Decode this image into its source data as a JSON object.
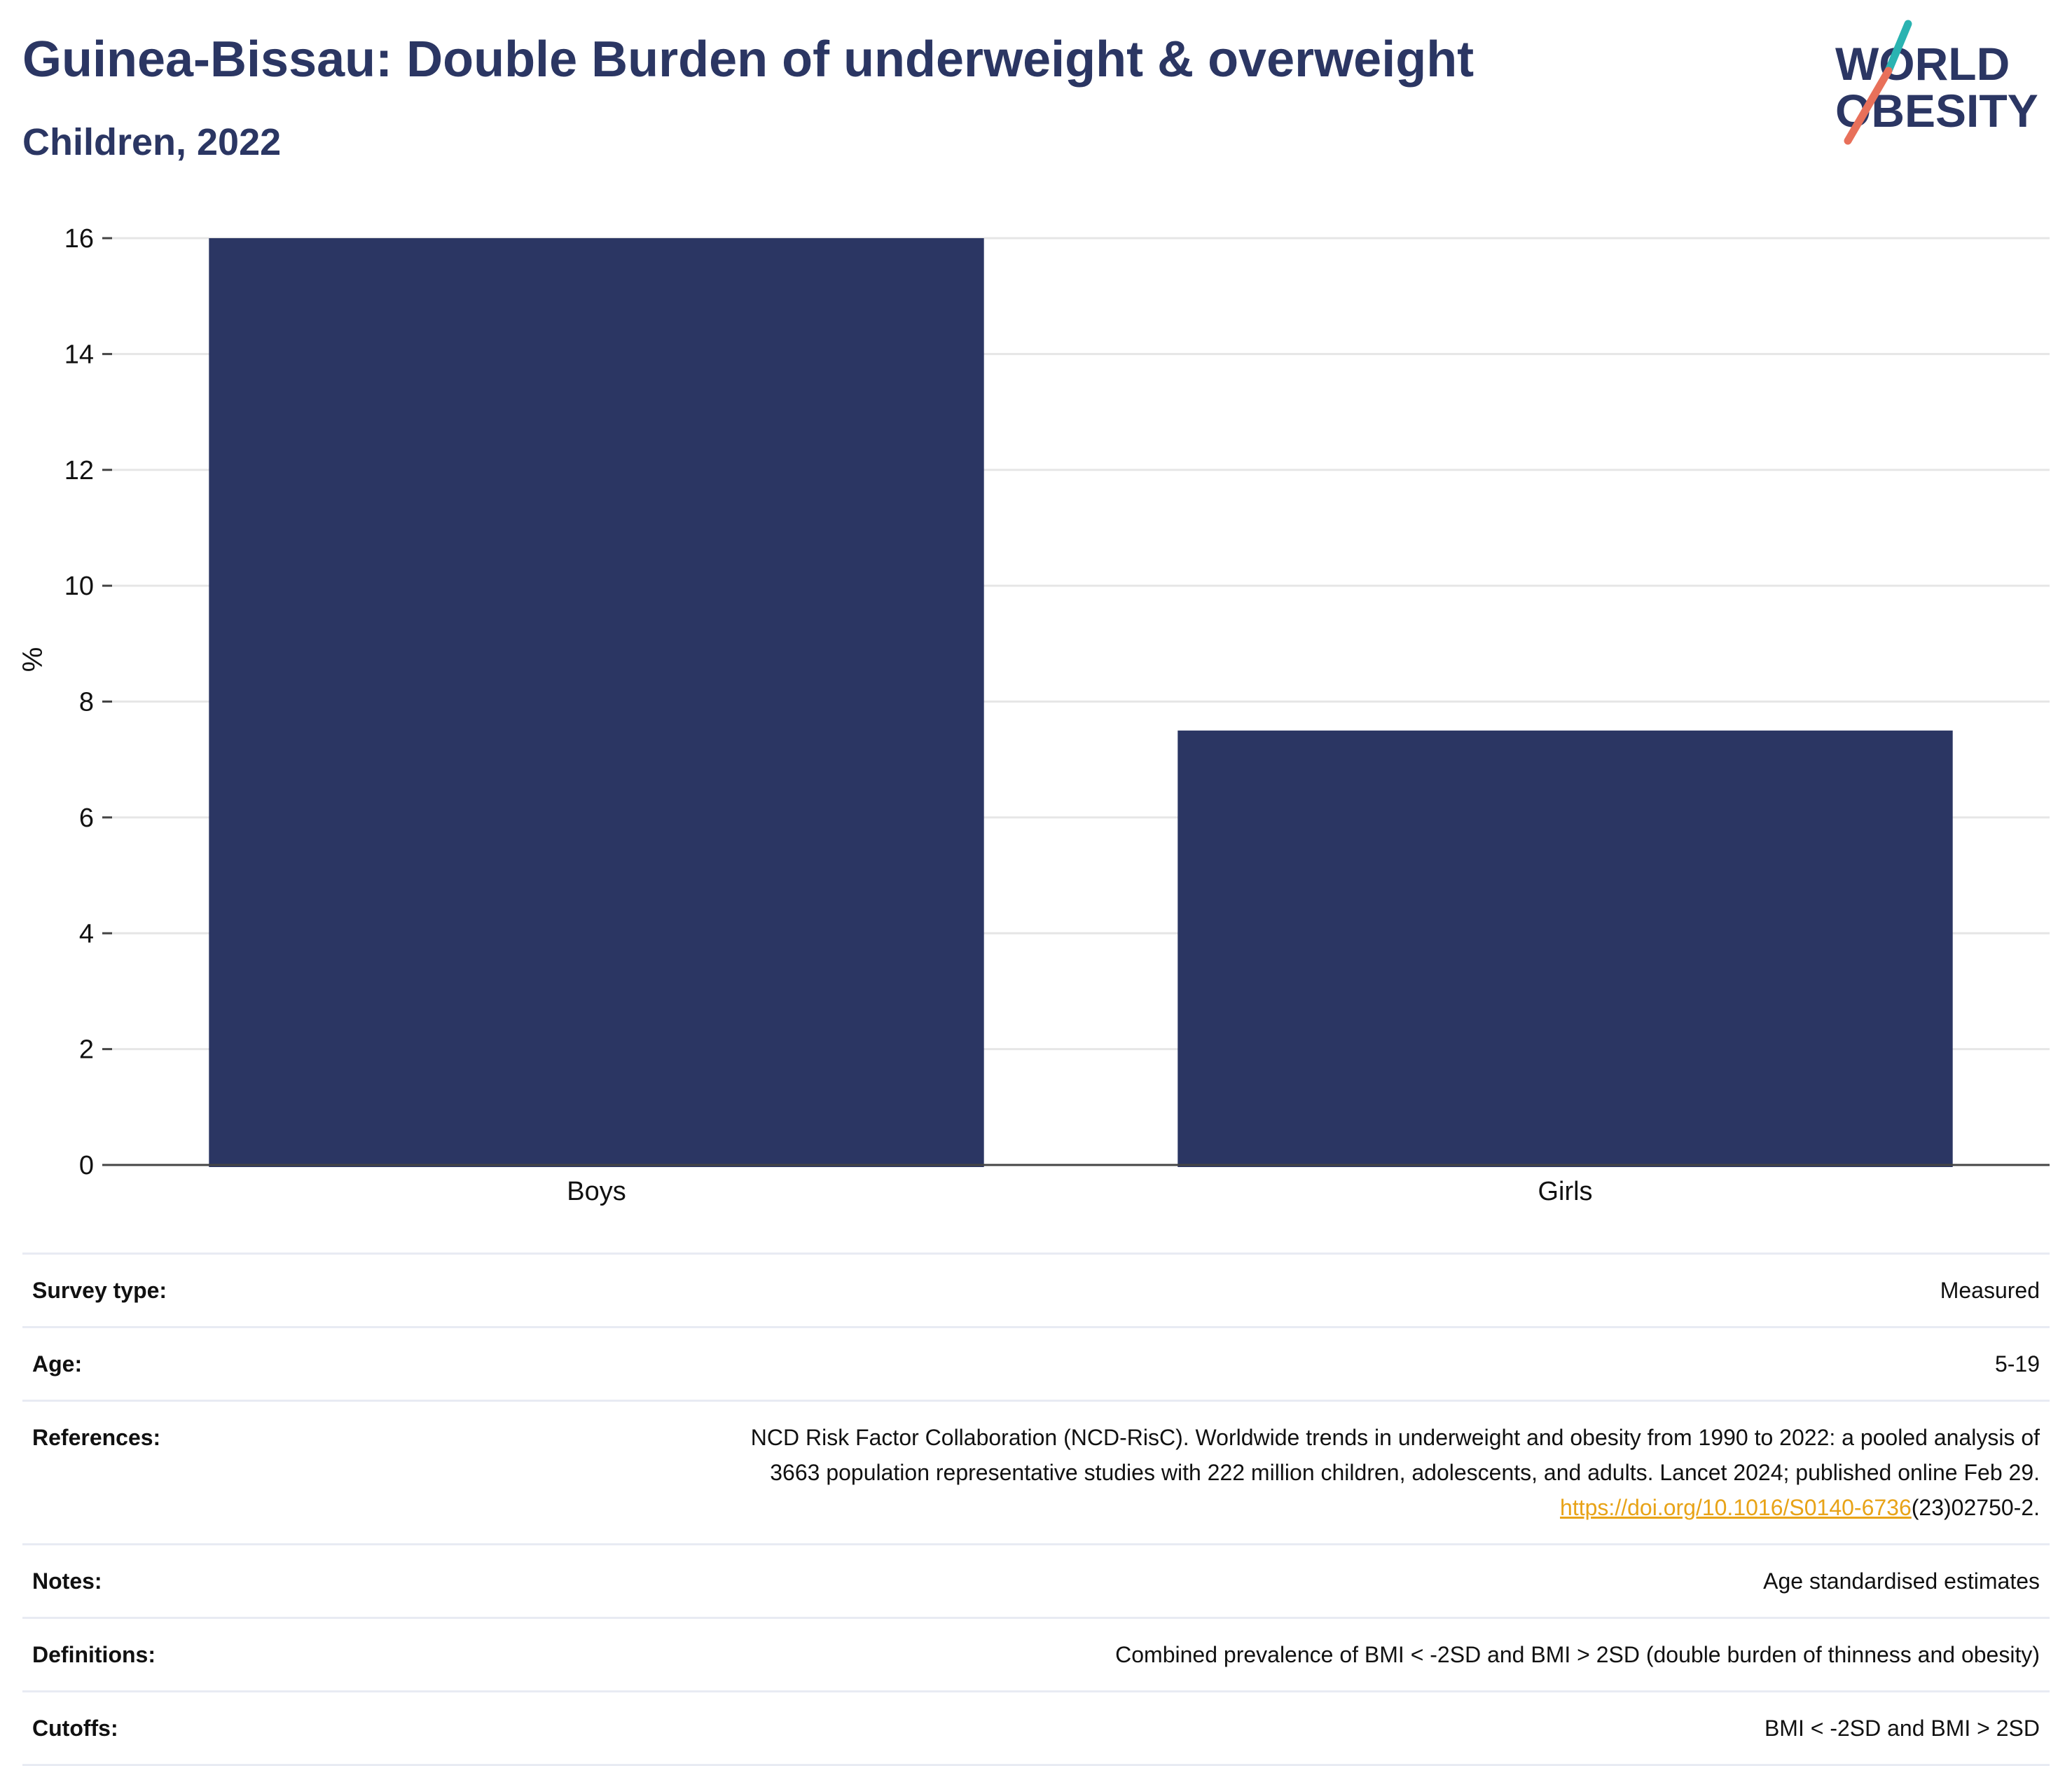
{
  "header": {
    "title": "Guinea-Bissau: Double Burden of underweight & overweight",
    "subtitle": "Children, 2022"
  },
  "logo": {
    "line1": "WORLD",
    "line2": "OBESITY",
    "colors": {
      "text": "#2b3663",
      "slash_top": "#2ab3b1",
      "slash_bottom": "#e8705a"
    }
  },
  "colors": {
    "bar": "#2b3663",
    "title": "#2b3663",
    "grid": "#e6e6e6",
    "axis": "#444444",
    "link": "#e8a317"
  },
  "chart_data": {
    "type": "bar",
    "categories": [
      "Boys",
      "Girls"
    ],
    "values": [
      16.0,
      7.5
    ],
    "title": "Guinea-Bissau: Double Burden of underweight & overweight",
    "subtitle": "Children, 2022",
    "xlabel": "",
    "ylabel": "%",
    "ylim": [
      0,
      16
    ],
    "yticks": [
      0,
      2,
      4,
      6,
      8,
      10,
      12,
      14,
      16
    ],
    "grid": true
  },
  "meta": {
    "rows": [
      {
        "label": "Survey type:",
        "value": "Measured"
      },
      {
        "label": "Age:",
        "value": "5-19"
      },
      {
        "label": "References:",
        "value_line1": "NCD Risk Factor Collaboration (NCD-RisC). Worldwide trends in underweight and obesity from 1990 to 2022: a pooled analysis of",
        "value_line2": "3663 population representative studies with 222 million children, adolescents, and adults. Lancet 2024; published online Feb 29.",
        "link_text": "https://doi.org/10.1016/S0140-6736",
        "link_suffix": "(23)02750-2."
      },
      {
        "label": "Notes:",
        "value": "Age standardised estimates"
      },
      {
        "label": "Definitions:",
        "value": "Combined prevalence of BMI < -2SD and BMI > 2SD (double burden of thinness and obesity)"
      },
      {
        "label": "Cutoffs:",
        "value": "BMI < -2SD and BMI > 2SD"
      }
    ]
  }
}
